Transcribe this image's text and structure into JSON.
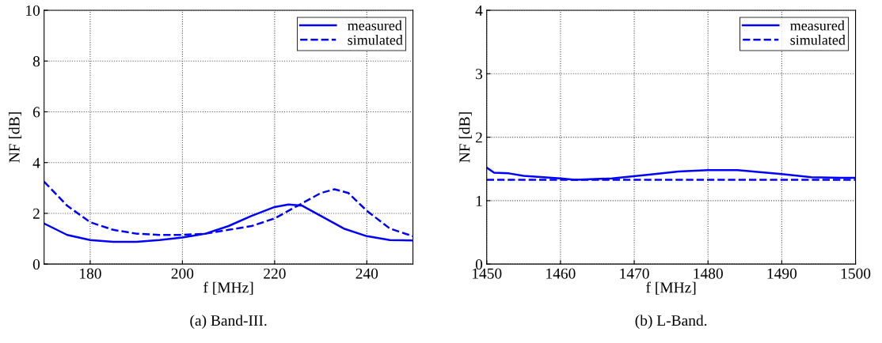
{
  "chart_data": [
    {
      "type": "line",
      "xlabel": "f [MHz]",
      "ylabel": "NF [dB]",
      "xlim": [
        170,
        250
      ],
      "xticks": [
        180,
        200,
        220,
        240
      ],
      "ylim": [
        0,
        10
      ],
      "yticks": [
        0,
        2,
        4,
        6,
        8,
        10
      ],
      "grid": true,
      "legend": "top right",
      "annotations": [
        "(a) Band-III."
      ],
      "series": [
        {
          "name": "measured",
          "color": "#0000ff",
          "line_style": "solid",
          "x": [
            170,
            175,
            180,
            185,
            190,
            195,
            200,
            205,
            210,
            215,
            220,
            223,
            226,
            230,
            235,
            240,
            245,
            250
          ],
          "values": [
            1.6,
            1.15,
            0.95,
            0.88,
            0.88,
            0.95,
            1.05,
            1.2,
            1.5,
            1.9,
            2.25,
            2.35,
            2.3,
            1.9,
            1.4,
            1.1,
            0.95,
            0.93
          ]
        },
        {
          "name": "simulated",
          "color": "#0000ff",
          "line_style": "dashed",
          "x": [
            170,
            175,
            180,
            185,
            190,
            195,
            200,
            205,
            210,
            215,
            220,
            225,
            230,
            233,
            236,
            240,
            245,
            250
          ],
          "values": [
            3.25,
            2.3,
            1.65,
            1.35,
            1.2,
            1.15,
            1.15,
            1.2,
            1.35,
            1.5,
            1.8,
            2.3,
            2.8,
            2.95,
            2.8,
            2.1,
            1.4,
            1.1
          ]
        }
      ]
    },
    {
      "type": "line",
      "xlabel": "f [MHz]",
      "ylabel": "NF [dB]",
      "xlim": [
        1450,
        1500
      ],
      "xticks": [
        1450,
        1460,
        1470,
        1480,
        1490,
        1500
      ],
      "ylim": [
        0,
        4
      ],
      "yticks": [
        0,
        1,
        2,
        3,
        4
      ],
      "grid": true,
      "legend": "top right",
      "annotations": [
        "(b) L-Band."
      ],
      "series": [
        {
          "name": "measured",
          "color": "#0000ff",
          "line_style": "solid",
          "x": [
            1450,
            1451,
            1453,
            1455,
            1460,
            1462,
            1467,
            1472,
            1476,
            1480,
            1484,
            1487,
            1490,
            1494,
            1498,
            1500
          ],
          "values": [
            1.52,
            1.44,
            1.43,
            1.39,
            1.35,
            1.33,
            1.35,
            1.41,
            1.46,
            1.48,
            1.48,
            1.45,
            1.42,
            1.37,
            1.36,
            1.36
          ]
        },
        {
          "name": "simulated",
          "color": "#0000ff",
          "line_style": "dashed",
          "x": [
            1450,
            1500
          ],
          "values": [
            1.33,
            1.33
          ]
        }
      ]
    }
  ]
}
